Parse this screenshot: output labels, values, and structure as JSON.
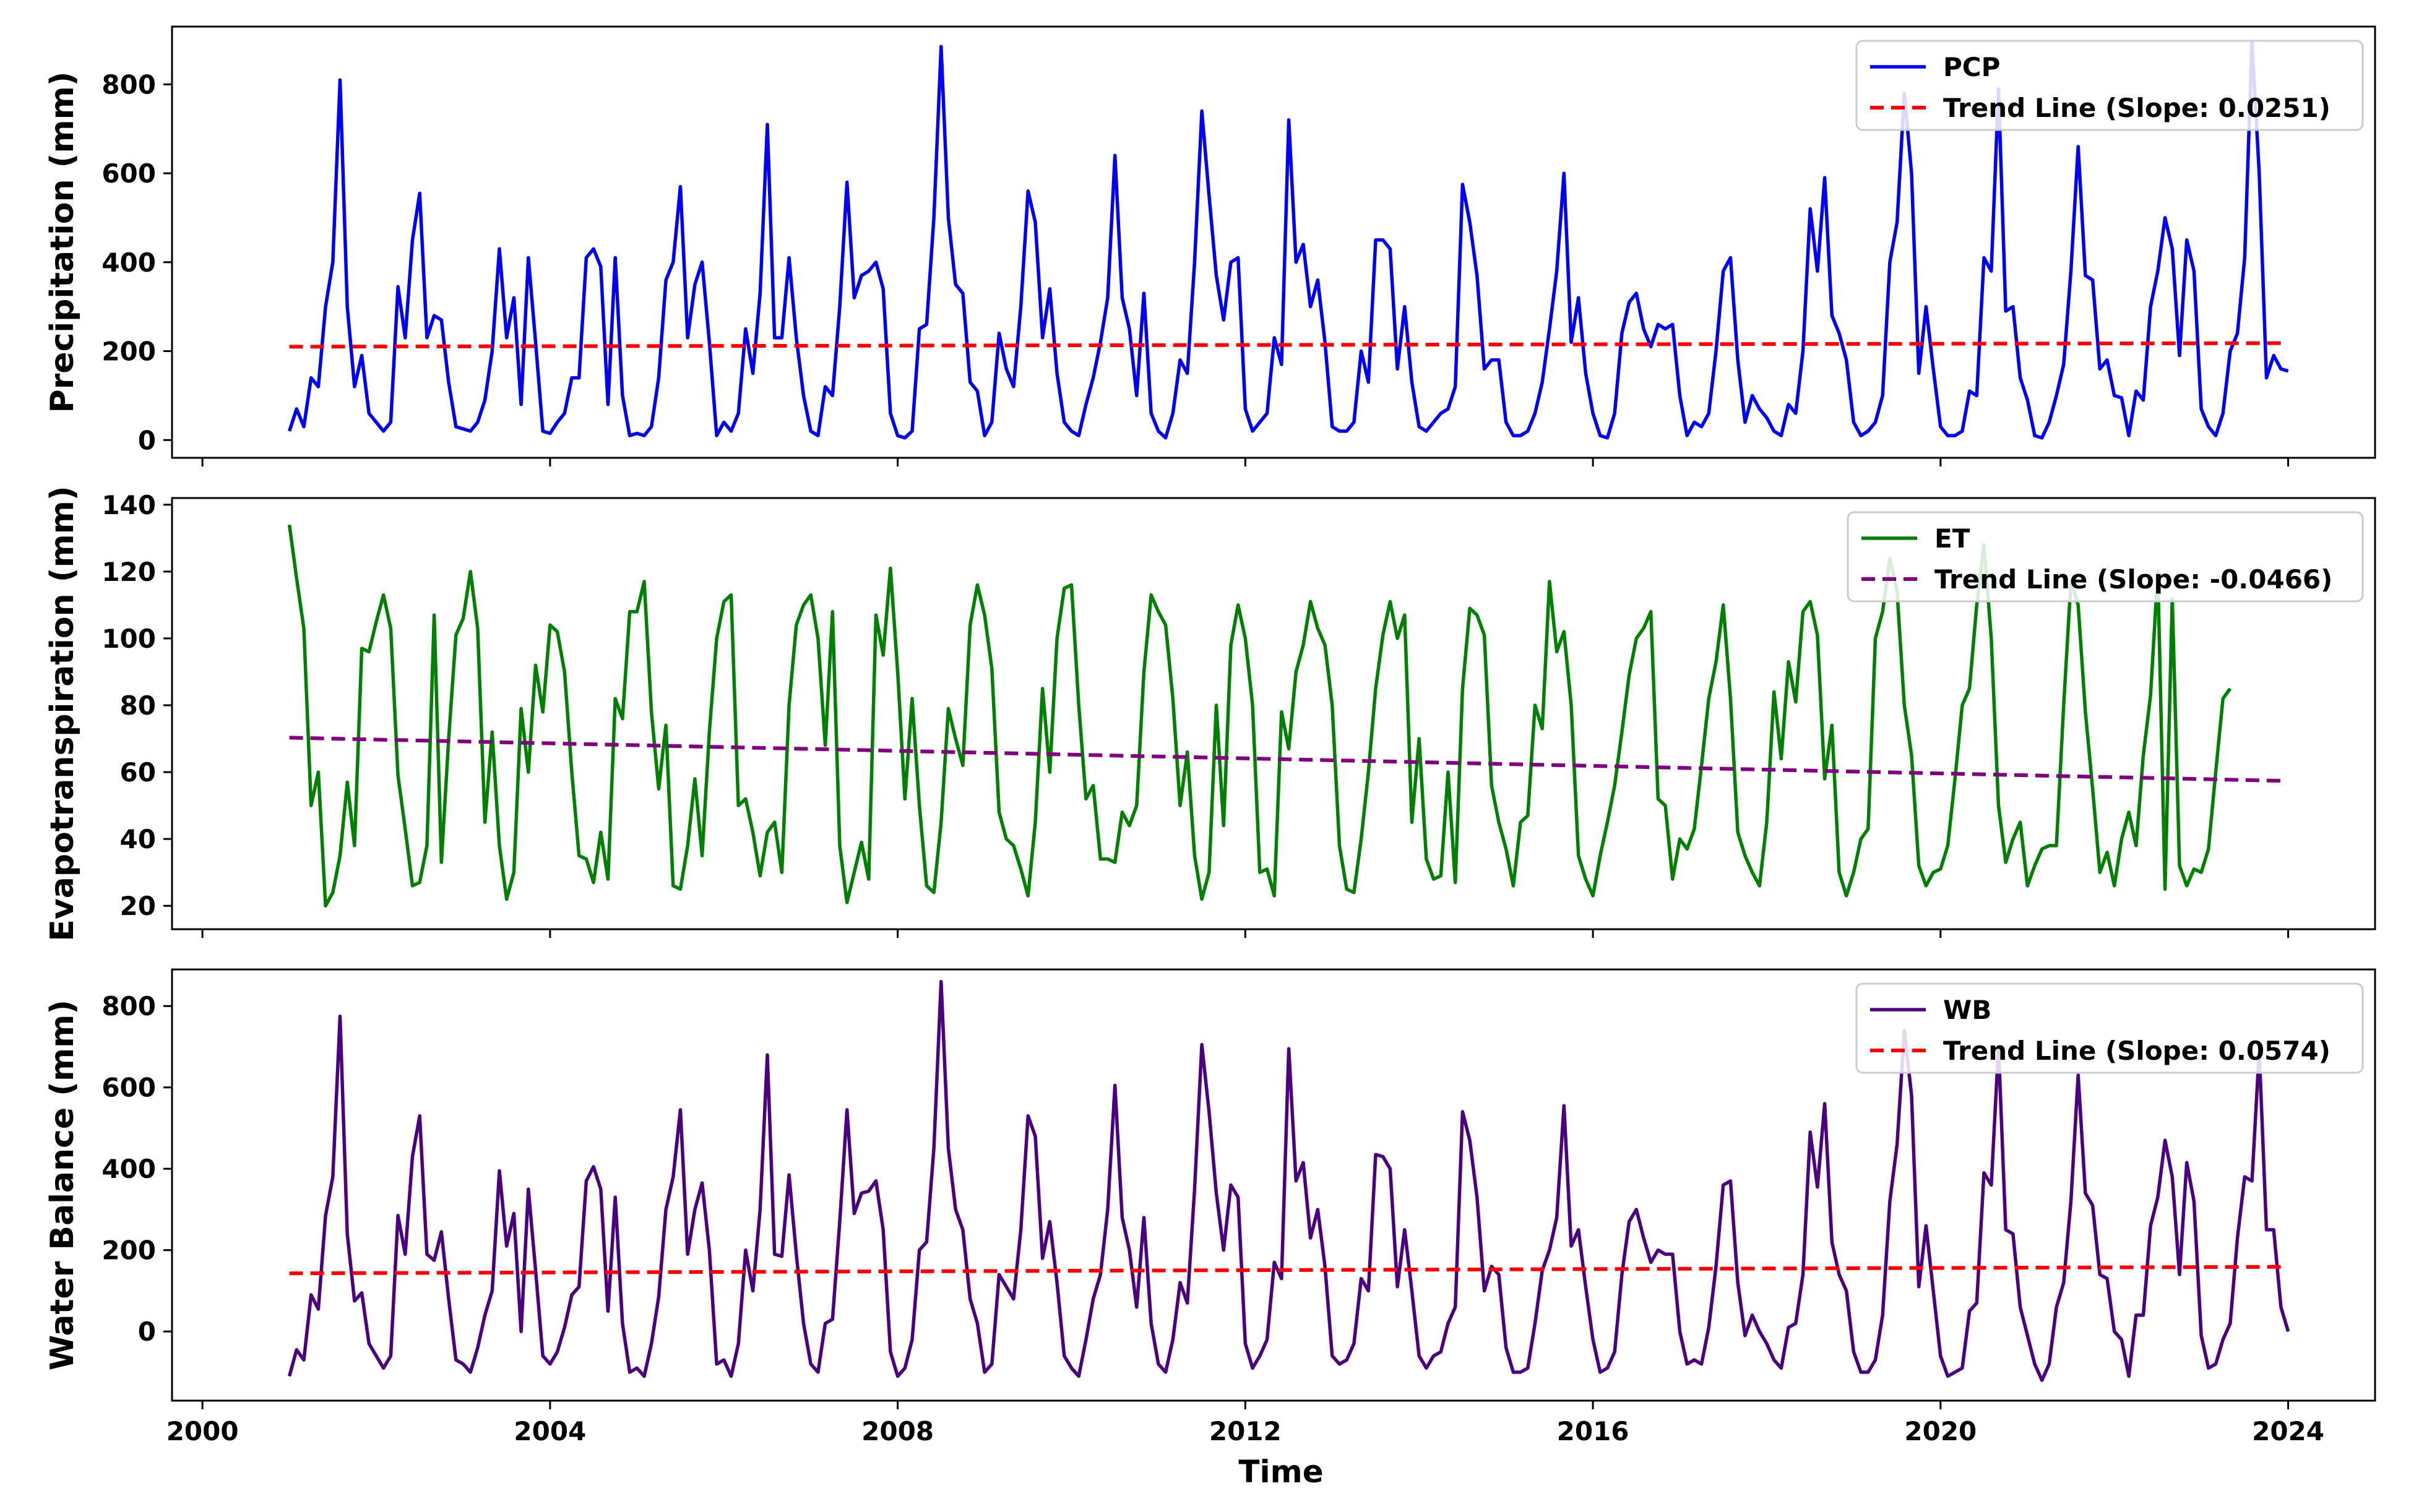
{
  "figure": {
    "xlabel": "Time",
    "x_ticks": [
      "2000",
      "2004",
      "2008",
      "2012",
      "2016",
      "2020",
      "2024"
    ],
    "x_range": [
      1999.65,
      2025.0
    ]
  },
  "chart_data": [
    {
      "type": "line",
      "title": "",
      "xlabel": "",
      "ylabel": "Precipitation (mm)",
      "ylim": [
        -40,
        930
      ],
      "y_ticks": [
        0,
        200,
        400,
        600,
        800
      ],
      "grid": false,
      "legend_position": "top-right",
      "x_start": 2001.0,
      "x_step_months": 1,
      "series": [
        {
          "name": "PCP",
          "style": "solid",
          "color": "#0000ff",
          "values": [
            20,
            70,
            30,
            140,
            120,
            300,
            400,
            810,
            300,
            120,
            190,
            60,
            40,
            20,
            40,
            345,
            230,
            450,
            555,
            230,
            280,
            270,
            130,
            30,
            25,
            20,
            40,
            90,
            200,
            430,
            230,
            320,
            80,
            410,
            220,
            20,
            15,
            40,
            60,
            140,
            140,
            410,
            430,
            390,
            80,
            410,
            100,
            10,
            15,
            10,
            30,
            140,
            360,
            400,
            570,
            230,
            350,
            400,
            220,
            10,
            40,
            20,
            60,
            250,
            150,
            330,
            710,
            230,
            230,
            410,
            230,
            100,
            20,
            10,
            120,
            100,
            300,
            580,
            320,
            370,
            380,
            400,
            340,
            60,
            10,
            5,
            20,
            250,
            260,
            500,
            885,
            500,
            350,
            330,
            130,
            110,
            10,
            40,
            240,
            160,
            120,
            300,
            560,
            490,
            230,
            340,
            150,
            40,
            20,
            10,
            80,
            140,
            220,
            320,
            640,
            320,
            250,
            100,
            330,
            60,
            20,
            5,
            60,
            180,
            150,
            400,
            740,
            550,
            370,
            270,
            400,
            410,
            70,
            20,
            40,
            60,
            230,
            170,
            720,
            400,
            440,
            300,
            360,
            220,
            30,
            20,
            20,
            40,
            200,
            130,
            450,
            450,
            430,
            160,
            300,
            130,
            30,
            20,
            40,
            60,
            70,
            120,
            575,
            490,
            370,
            160,
            180,
            180,
            40,
            10,
            10,
            20,
            60,
            130,
            250,
            380,
            600,
            220,
            320,
            150,
            60,
            10,
            5,
            60,
            240,
            310,
            330,
            250,
            210,
            260,
            250,
            260,
            100,
            10,
            40,
            30,
            60,
            200,
            380,
            410,
            180,
            40,
            100,
            70,
            50,
            20,
            10,
            80,
            60,
            200,
            520,
            380,
            590,
            280,
            240,
            180,
            40,
            10,
            20,
            40,
            100,
            400,
            490,
            780,
            600,
            150,
            300,
            160,
            30,
            10,
            10,
            20,
            110,
            100,
            410,
            380,
            790,
            290,
            300,
            140,
            90,
            10,
            5,
            40,
            100,
            170,
            380,
            660,
            370,
            360,
            160,
            180,
            100,
            95,
            10,
            110,
            90,
            300,
            380,
            500,
            430,
            190,
            450,
            380,
            70,
            30,
            10,
            60,
            200,
            240,
            410,
            895,
            600,
            140,
            190,
            160,
            155
          ]
        },
        {
          "name": "Trend Line (Slope: 0.0251)",
          "style": "dashed",
          "color": "#ff0000",
          "x": [
            2001.0,
            2023.92
          ],
          "values": [
            210,
            218
          ]
        }
      ]
    },
    {
      "type": "line",
      "title": "",
      "xlabel": "",
      "ylabel": "Evapotranspiration (mm)",
      "ylim": [
        13,
        142
      ],
      "y_ticks": [
        20,
        40,
        60,
        80,
        100,
        120,
        140
      ],
      "grid": false,
      "legend_position": "top-right",
      "x_start": 2001.0,
      "x_step_months": 1,
      "series": [
        {
          "name": "ET",
          "style": "solid",
          "color": "#008000",
          "values": [
            134,
            118,
            103,
            50,
            60,
            20,
            24,
            35,
            57,
            38,
            97,
            96,
            105,
            113,
            103,
            59,
            43,
            26,
            27,
            38,
            107,
            33,
            70,
            101,
            106,
            120,
            103,
            45,
            72,
            38,
            22,
            30,
            79,
            60,
            92,
            78,
            104,
            102,
            90,
            60,
            35,
            34,
            27,
            42,
            28,
            82,
            76,
            108,
            108,
            117,
            78,
            55,
            74,
            26,
            25,
            38,
            58,
            35,
            72,
            100,
            111,
            113,
            50,
            52,
            42,
            29,
            42,
            45,
            30,
            80,
            104,
            110,
            113,
            100,
            68,
            108,
            38,
            21,
            30,
            39,
            28,
            107,
            95,
            121,
            90,
            52,
            82,
            50,
            26,
            24,
            45,
            79,
            70,
            62,
            104,
            116,
            107,
            91,
            48,
            40,
            38,
            31,
            23,
            45,
            85,
            60,
            100,
            115,
            116,
            80,
            52,
            56,
            34,
            34,
            33,
            48,
            44,
            50,
            90,
            113,
            108,
            104,
            82,
            50,
            66,
            35,
            22,
            30,
            80,
            44,
            98,
            110,
            100,
            80,
            30,
            31,
            23,
            78,
            67,
            90,
            98,
            111,
            103,
            98,
            80,
            38,
            25,
            24,
            40,
            60,
            85,
            101,
            111,
            100,
            107,
            45,
            70,
            34,
            28,
            29,
            60,
            27,
            85,
            109,
            107,
            101,
            56,
            45,
            37,
            26,
            45,
            47,
            80,
            73,
            117,
            96,
            102,
            80,
            35,
            28,
            23,
            35,
            45,
            56,
            72,
            89,
            100,
            103,
            108,
            52,
            50,
            28,
            40,
            37,
            43,
            62,
            82,
            93,
            110,
            82,
            42,
            35,
            30,
            26,
            45,
            84,
            64,
            93,
            81,
            108,
            111,
            101,
            58,
            74,
            30,
            23,
            30,
            40,
            43,
            100,
            108,
            124,
            114,
            80,
            65,
            32,
            26,
            30,
            31,
            38,
            58,
            80,
            85,
            110,
            128,
            100,
            50,
            33,
            40,
            45,
            26,
            32,
            37,
            38,
            38,
            80,
            117,
            110,
            78,
            55,
            30,
            36,
            26,
            40,
            48,
            38,
            65,
            83,
            120,
            25,
            112,
            32,
            26,
            31,
            30,
            37,
            60,
            82,
            85
          ]
        },
        {
          "name": "Trend Line (Slope: -0.0466)",
          "style": "dashed",
          "color": "#800080",
          "x": [
            2001.0,
            2023.92
          ],
          "values": [
            70.3,
            57.4
          ]
        }
      ]
    },
    {
      "type": "line",
      "title": "",
      "xlabel": "Time",
      "ylabel": "Water Balance (mm)",
      "ylim": [
        -170,
        890
      ],
      "y_ticks": [
        0,
        200,
        400,
        600,
        800
      ],
      "grid": false,
      "legend_position": "top-right",
      "x_start": 2001.0,
      "x_step_months": 1,
      "series": [
        {
          "name": "WB",
          "style": "solid",
          "color": "#4b0082",
          "values": [
            -110,
            -45,
            -70,
            90,
            55,
            285,
            380,
            775,
            240,
            75,
            95,
            -30,
            -60,
            -90,
            -60,
            285,
            190,
            430,
            530,
            190,
            175,
            245,
            80,
            -70,
            -80,
            -100,
            -40,
            40,
            100,
            395,
            210,
            290,
            0,
            350,
            150,
            -60,
            -80,
            -50,
            10,
            90,
            110,
            370,
            405,
            350,
            50,
            330,
            20,
            -100,
            -90,
            -110,
            -30,
            85,
            300,
            380,
            545,
            190,
            300,
            365,
            200,
            -80,
            -70,
            -110,
            -30,
            200,
            100,
            300,
            680,
            190,
            185,
            385,
            190,
            20,
            -80,
            -100,
            20,
            30,
            270,
            545,
            290,
            340,
            345,
            370,
            250,
            -50,
            -110,
            -90,
            -20,
            200,
            220,
            450,
            860,
            450,
            300,
            250,
            80,
            20,
            -100,
            -80,
            140,
            110,
            80,
            250,
            530,
            480,
            180,
            270,
            120,
            -60,
            -90,
            -110,
            -20,
            80,
            140,
            300,
            605,
            280,
            200,
            60,
            280,
            20,
            -80,
            -100,
            -20,
            120,
            70,
            350,
            705,
            540,
            340,
            200,
            360,
            330,
            -30,
            -90,
            -60,
            -20,
            170,
            130,
            695,
            370,
            415,
            230,
            300,
            160,
            -60,
            -80,
            -70,
            -30,
            130,
            100,
            435,
            430,
            400,
            110,
            250,
            100,
            -60,
            -90,
            -60,
            -50,
            20,
            60,
            540,
            470,
            330,
            100,
            160,
            140,
            -40,
            -100,
            -100,
            -90,
            20,
            150,
            200,
            280,
            555,
            210,
            250,
            110,
            -20,
            -100,
            -90,
            -50,
            140,
            270,
            300,
            230,
            170,
            200,
            190,
            190,
            0,
            -80,
            -70,
            -80,
            10,
            160,
            360,
            370,
            120,
            -10,
            40,
            0,
            -30,
            -70,
            -90,
            10,
            20,
            140,
            490,
            355,
            560,
            220,
            140,
            100,
            -50,
            -100,
            -100,
            -70,
            40,
            320,
            460,
            740,
            580,
            110,
            260,
            100,
            -60,
            -110,
            -100,
            -90,
            50,
            70,
            390,
            360,
            700,
            250,
            240,
            60,
            -10,
            -80,
            -120,
            -80,
            60,
            120,
            320,
            630,
            340,
            310,
            140,
            130,
            0,
            -20,
            -110,
            40,
            40,
            260,
            330,
            470,
            380,
            140,
            415,
            320,
            -10,
            -90,
            -80,
            -20,
            20,
            230,
            380,
            370,
            690,
            250,
            250,
            60,
            0
          ]
        },
        {
          "name": "Trend Line (Slope: 0.0574)",
          "style": "dashed",
          "color": "#ff0000",
          "x": [
            2001.0,
            2023.92
          ],
          "values": [
            143,
            159
          ]
        }
      ]
    }
  ]
}
